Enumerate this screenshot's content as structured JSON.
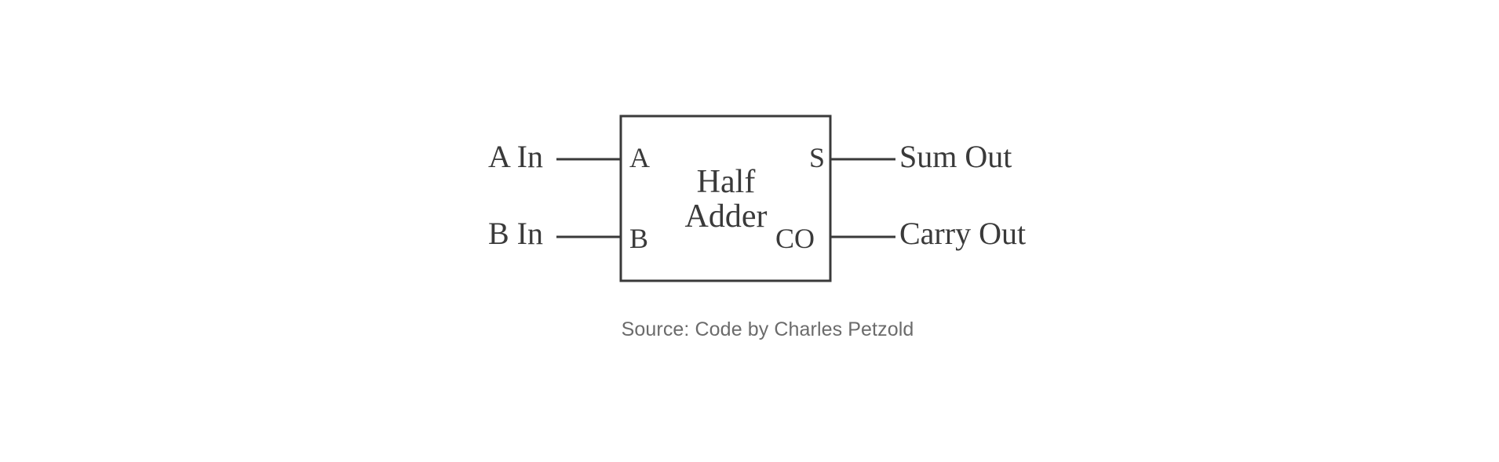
{
  "diagram": {
    "block": {
      "title_line1": "Half",
      "title_line2": "Adder"
    },
    "inputs": {
      "a_label": "A In",
      "b_label": "B In"
    },
    "ports": {
      "a": "A",
      "b": "B",
      "s": "S",
      "co": "CO"
    },
    "outputs": {
      "sum_label": "Sum Out",
      "carry_label": "Carry Out"
    }
  },
  "caption": {
    "text": "Source: Code by Charles Petzold"
  },
  "colors": {
    "stroke": "#3a3a3a",
    "caption": "#6b6b6b"
  }
}
